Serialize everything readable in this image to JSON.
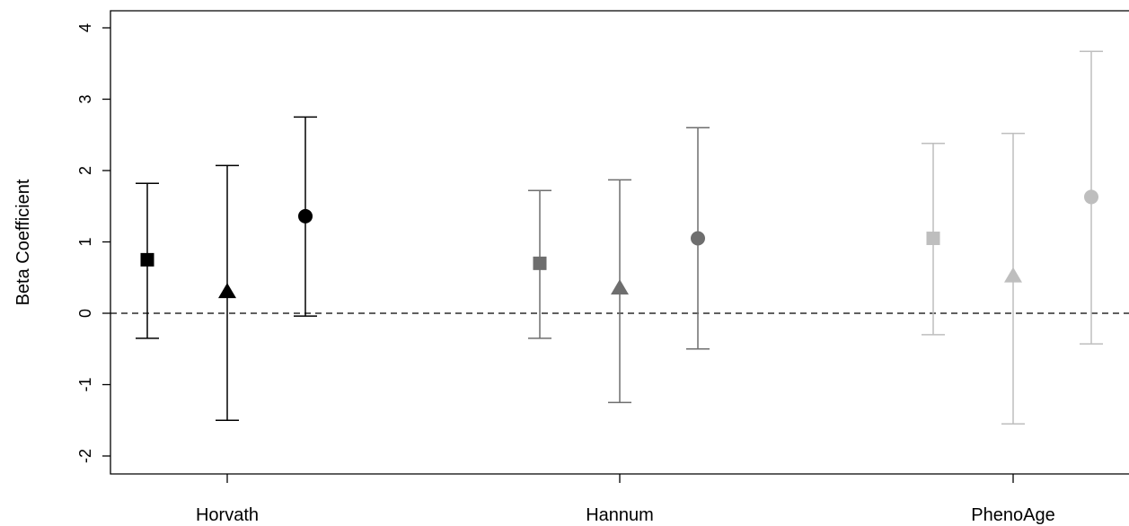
{
  "chart_data": {
    "type": "scatter",
    "subtype": "point-estimate-with-confidence-intervals",
    "title": "",
    "xlabel": "",
    "ylabel": "Beta Coefficient",
    "ylim": [
      -2.2,
      4.2
    ],
    "yticks": [
      -2,
      -1,
      0,
      1,
      2,
      3,
      4
    ],
    "ytick_labels": [
      "-2",
      "-1",
      "0",
      "1",
      "2",
      "3",
      "4"
    ],
    "reference_line": {
      "y": 0,
      "style": "dashed"
    },
    "grid": false,
    "legend": "none",
    "categories": [
      "Horvath",
      "Hannum",
      "PhenoAge"
    ],
    "markers": [
      "square",
      "triangle",
      "circle"
    ],
    "groups": [
      {
        "category": "Horvath",
        "color": "#000000",
        "points": [
          {
            "marker": "square",
            "estimate": 0.75,
            "lower": -0.35,
            "upper": 1.82
          },
          {
            "marker": "triangle",
            "estimate": 0.3,
            "lower": -1.5,
            "upper": 2.07
          },
          {
            "marker": "circle",
            "estimate": 1.36,
            "lower": -0.04,
            "upper": 2.75
          }
        ]
      },
      {
        "category": "Hannum",
        "color": "#6e6e6e",
        "points": [
          {
            "marker": "square",
            "estimate": 0.7,
            "lower": -0.35,
            "upper": 1.72
          },
          {
            "marker": "triangle",
            "estimate": 0.35,
            "lower": -1.25,
            "upper": 1.87
          },
          {
            "marker": "circle",
            "estimate": 1.05,
            "lower": -0.5,
            "upper": 2.6
          }
        ]
      },
      {
        "category": "PhenoAge",
        "color": "#bebebe",
        "points": [
          {
            "marker": "square",
            "estimate": 1.05,
            "lower": -0.3,
            "upper": 2.38
          },
          {
            "marker": "triangle",
            "estimate": 0.52,
            "lower": -1.55,
            "upper": 2.52
          },
          {
            "marker": "circle",
            "estimate": 1.63,
            "lower": -0.43,
            "upper": 3.67
          }
        ]
      }
    ]
  }
}
